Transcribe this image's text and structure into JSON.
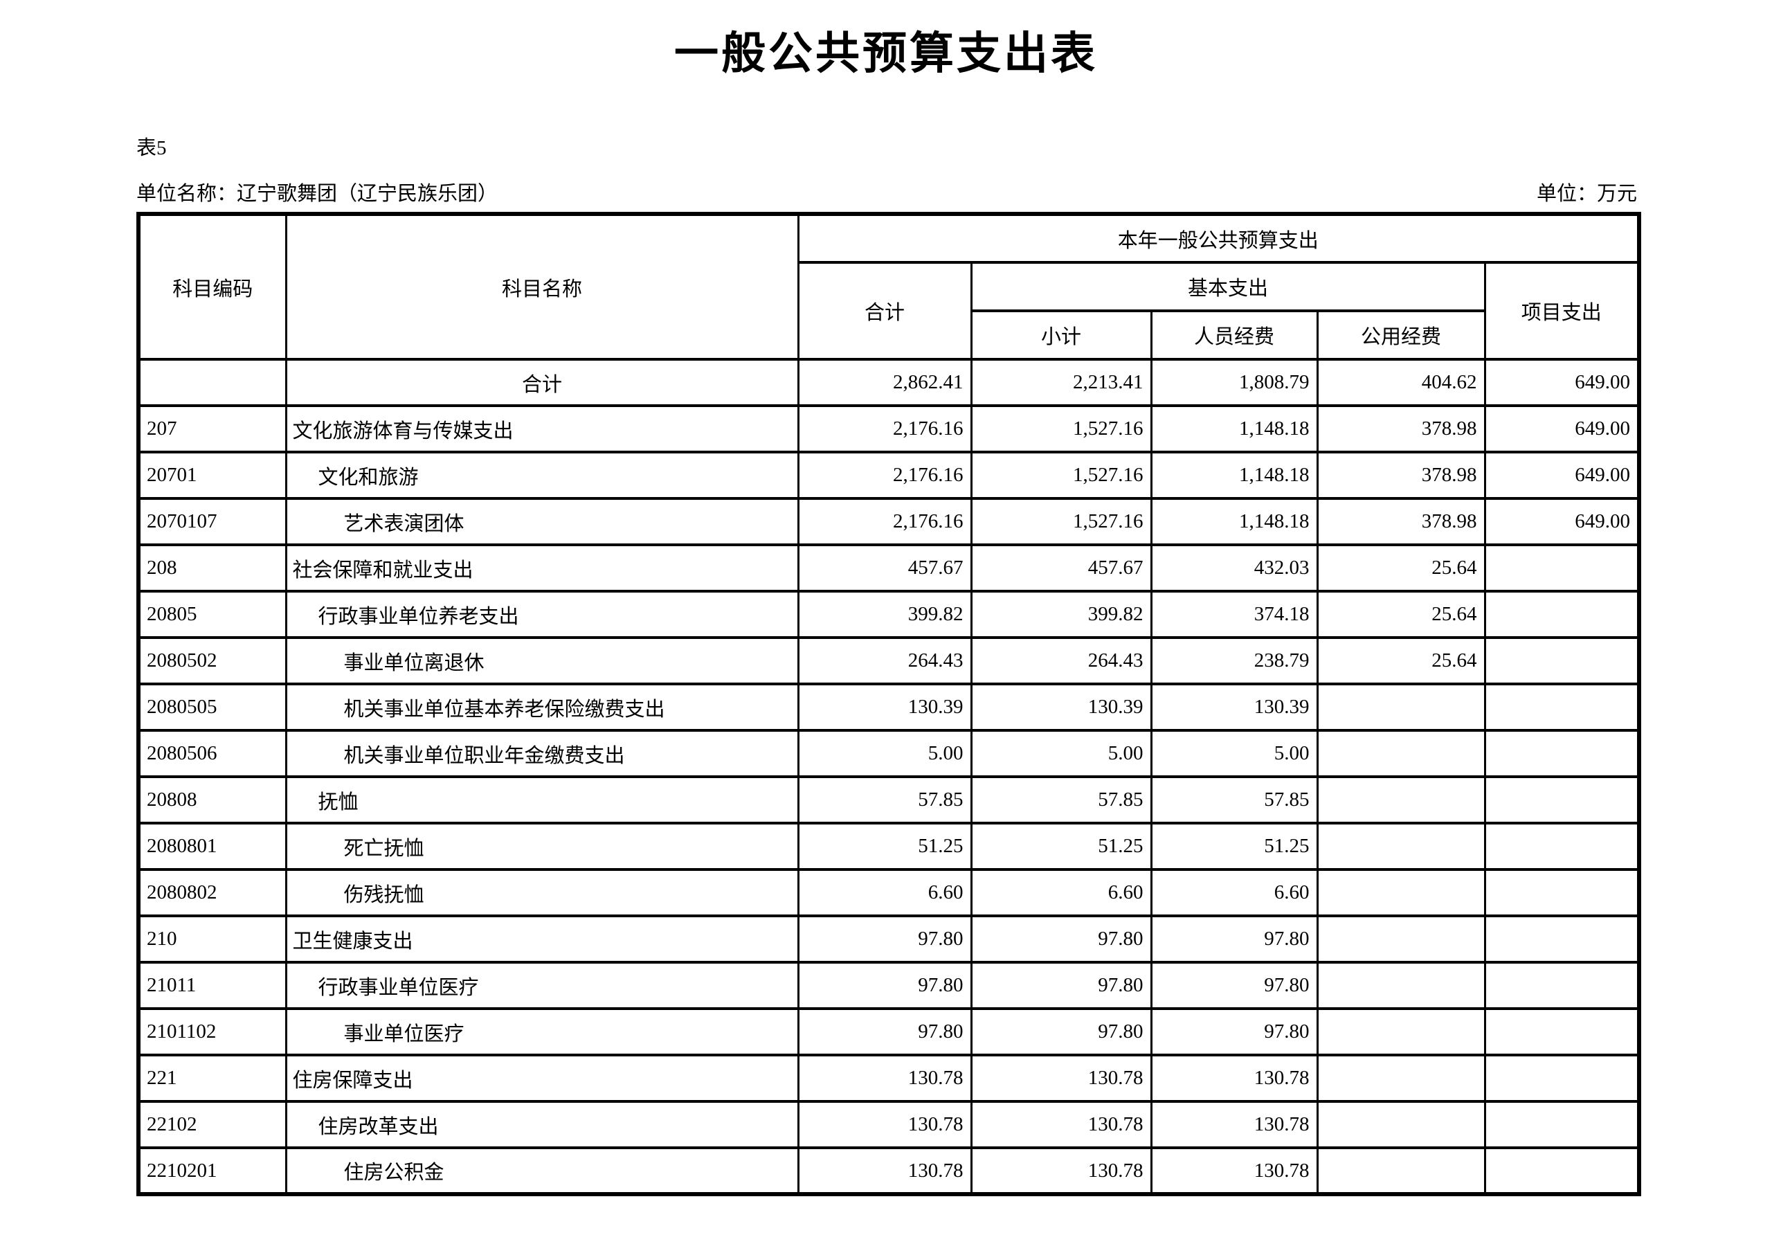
{
  "page": {
    "title": "一般公共预算支出表",
    "table_label": "表5",
    "unit_name": "单位名称：辽宁歌舞团（辽宁民族乐团）",
    "unit": "单位：万元"
  },
  "table": {
    "headers": {
      "code": "科目编码",
      "name": "科目名称",
      "current_year": "本年一般公共预算支出",
      "total": "合计",
      "basic": "基本支出",
      "subtotal": "小计",
      "personnel": "人员经费",
      "public_funds": "公用经费",
      "project": "项目支出"
    },
    "rows": [
      {
        "code": "",
        "name": "合计",
        "indent": 0,
        "name_align": "center",
        "values": [
          "2,862.41",
          "2,213.41",
          "1,808.79",
          "404.62",
          "649.00"
        ]
      },
      {
        "code": "207",
        "name": "文化旅游体育与传媒支出",
        "indent": 0,
        "values": [
          "2,176.16",
          "1,527.16",
          "1,148.18",
          "378.98",
          "649.00"
        ]
      },
      {
        "code": "20701",
        "name": "文化和旅游",
        "indent": 1,
        "values": [
          "2,176.16",
          "1,527.16",
          "1,148.18",
          "378.98",
          "649.00"
        ]
      },
      {
        "code": "2070107",
        "name": "艺术表演团体",
        "indent": 2,
        "values": [
          "2,176.16",
          "1,527.16",
          "1,148.18",
          "378.98",
          "649.00"
        ]
      },
      {
        "code": "208",
        "name": "社会保障和就业支出",
        "indent": 0,
        "values": [
          "457.67",
          "457.67",
          "432.03",
          "25.64",
          ""
        ]
      },
      {
        "code": "20805",
        "name": "行政事业单位养老支出",
        "indent": 1,
        "values": [
          "399.82",
          "399.82",
          "374.18",
          "25.64",
          ""
        ]
      },
      {
        "code": "2080502",
        "name": "事业单位离退休",
        "indent": 2,
        "values": [
          "264.43",
          "264.43",
          "238.79",
          "25.64",
          ""
        ]
      },
      {
        "code": "2080505",
        "name": "机关事业单位基本养老保险缴费支出",
        "indent": 2,
        "values": [
          "130.39",
          "130.39",
          "130.39",
          "",
          ""
        ]
      },
      {
        "code": "2080506",
        "name": "机关事业单位职业年金缴费支出",
        "indent": 2,
        "values": [
          "5.00",
          "5.00",
          "5.00",
          "",
          ""
        ]
      },
      {
        "code": "20808",
        "name": "抚恤",
        "indent": 1,
        "values": [
          "57.85",
          "57.85",
          "57.85",
          "",
          ""
        ]
      },
      {
        "code": "2080801",
        "name": "死亡抚恤",
        "indent": 2,
        "values": [
          "51.25",
          "51.25",
          "51.25",
          "",
          ""
        ]
      },
      {
        "code": "2080802",
        "name": "伤残抚恤",
        "indent": 2,
        "values": [
          "6.60",
          "6.60",
          "6.60",
          "",
          ""
        ]
      },
      {
        "code": "210",
        "name": "卫生健康支出",
        "indent": 0,
        "values": [
          "97.80",
          "97.80",
          "97.80",
          "",
          ""
        ]
      },
      {
        "code": "21011",
        "name": "行政事业单位医疗",
        "indent": 1,
        "values": [
          "97.80",
          "97.80",
          "97.80",
          "",
          ""
        ]
      },
      {
        "code": "2101102",
        "name": "事业单位医疗",
        "indent": 2,
        "values": [
          "97.80",
          "97.80",
          "97.80",
          "",
          ""
        ]
      },
      {
        "code": "221",
        "name": "住房保障支出",
        "indent": 0,
        "values": [
          "130.78",
          "130.78",
          "130.78",
          "",
          ""
        ]
      },
      {
        "code": "22102",
        "name": "住房改革支出",
        "indent": 1,
        "values": [
          "130.78",
          "130.78",
          "130.78",
          "",
          ""
        ]
      },
      {
        "code": "2210201",
        "name": "住房公积金",
        "indent": 2,
        "values": [
          "130.78",
          "130.78",
          "130.78",
          "",
          ""
        ]
      }
    ]
  }
}
